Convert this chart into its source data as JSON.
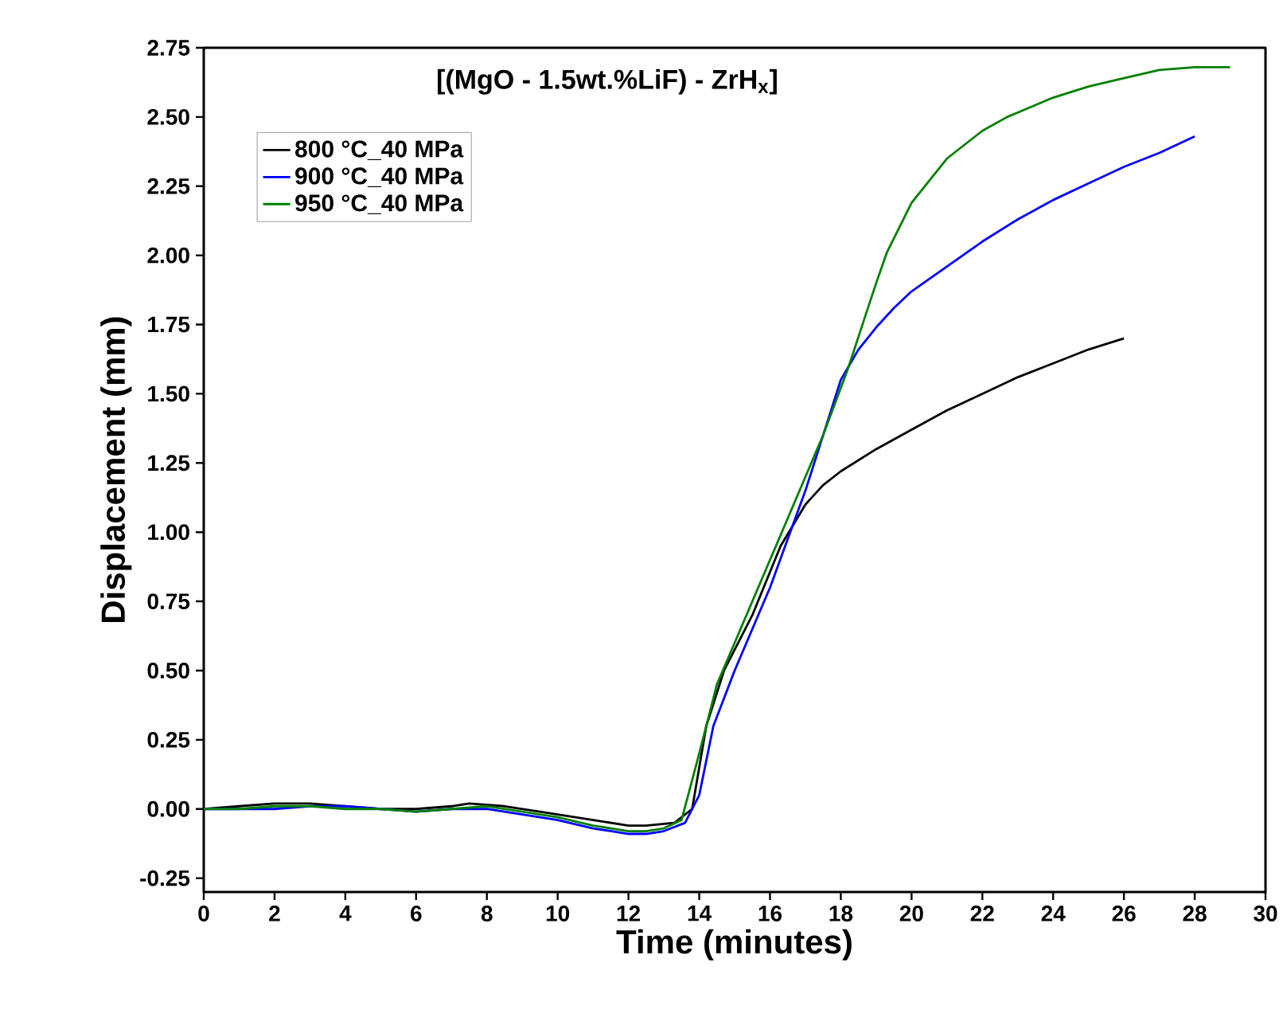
{
  "chart_data": {
    "type": "line",
    "title": "[(MgO - 1.5wt.%LiF) - ZrH$_{x}$]",
    "xlabel": "Time (minutes)",
    "ylabel": "Displacement (mm)",
    "xlim": [
      0,
      30
    ],
    "ylim": [
      -0.3,
      2.75
    ],
    "xticks": [
      0,
      2,
      4,
      6,
      8,
      10,
      12,
      14,
      16,
      18,
      20,
      22,
      24,
      26,
      28,
      30
    ],
    "yticks": [
      {
        "value": -0.25,
        "label": "-0.25"
      },
      {
        "value": 0,
        "label": "0.00"
      },
      0.25,
      {
        "value": 0.5,
        "label": "0.50"
      },
      0.75,
      {
        "value": 1,
        "label": "1.00"
      },
      1.25,
      {
        "value": 1.5,
        "label": "1.50"
      },
      1.75,
      {
        "value": 2,
        "label": "2.00"
      },
      2.25,
      {
        "value": 2.5,
        "label": "2.50"
      },
      2.75
    ],
    "legend": "top left",
    "grid": false,
    "marker": "none",
    "line_style": "solid",
    "series": [
      {
        "name": "800 °C_40 MPa",
        "color": "#000000",
        "x": [
          0,
          1,
          2,
          3,
          4,
          5,
          6,
          7,
          7.5,
          8.5,
          10,
          11,
          12,
          12.5,
          13.3,
          13.8,
          14.2,
          14.7,
          15.5,
          16.3,
          17,
          17.5,
          18,
          19,
          20,
          21,
          22,
          23,
          24,
          25,
          26
        ],
        "values": [
          0,
          0.01,
          0.02,
          0.02,
          0.01,
          0.0,
          0.0,
          0.01,
          0.02,
          0.01,
          -0.02,
          -0.04,
          -0.06,
          -0.06,
          -0.05,
          0.0,
          0.3,
          0.5,
          0.7,
          0.95,
          1.1,
          1.17,
          1.22,
          1.3,
          1.37,
          1.44,
          1.5,
          1.56,
          1.61,
          1.66,
          1.7
        ]
      },
      {
        "name": "900 °C_40 MPa",
        "color": "#0000ff",
        "x": [
          0,
          1,
          2,
          3,
          4,
          5,
          6,
          7,
          8,
          9,
          10,
          11,
          12,
          12.5,
          13,
          13.6,
          14,
          14.4,
          15,
          16,
          17,
          17.5,
          18,
          18.5,
          19,
          19.5,
          20,
          21,
          22,
          23,
          24,
          25,
          26,
          27,
          28
        ],
        "values": [
          0,
          0,
          0,
          0.01,
          0.01,
          0,
          -0.01,
          0,
          0,
          -0.02,
          -0.04,
          -0.07,
          -0.09,
          -0.09,
          -0.08,
          -0.05,
          0.05,
          0.3,
          0.5,
          0.8,
          1.15,
          1.35,
          1.55,
          1.66,
          1.74,
          1.81,
          1.87,
          1.96,
          2.05,
          2.13,
          2.2,
          2.26,
          2.32,
          2.37,
          2.43
        ]
      },
      {
        "name": "950 °C_40 MPa",
        "color": "#008000",
        "x": [
          0,
          1,
          2,
          3,
          4,
          5,
          6,
          7,
          8,
          9,
          10,
          11,
          12,
          12.5,
          13,
          13.5,
          14,
          14.5,
          15,
          16,
          16.7,
          17.5,
          18.2,
          19,
          19.3,
          20,
          21,
          22,
          22.7,
          24,
          25,
          26,
          27,
          28,
          29
        ],
        "values": [
          0,
          0,
          0.01,
          0.01,
          0,
          0,
          -0.01,
          0,
          0.01,
          -0.01,
          -0.03,
          -0.06,
          -0.08,
          -0.08,
          -0.07,
          -0.04,
          0.2,
          0.45,
          0.6,
          0.9,
          1.11,
          1.35,
          1.59,
          1.9,
          2.01,
          2.19,
          2.35,
          2.45,
          2.5,
          2.57,
          2.61,
          2.64,
          2.67,
          2.68,
          2.68
        ]
      }
    ]
  }
}
